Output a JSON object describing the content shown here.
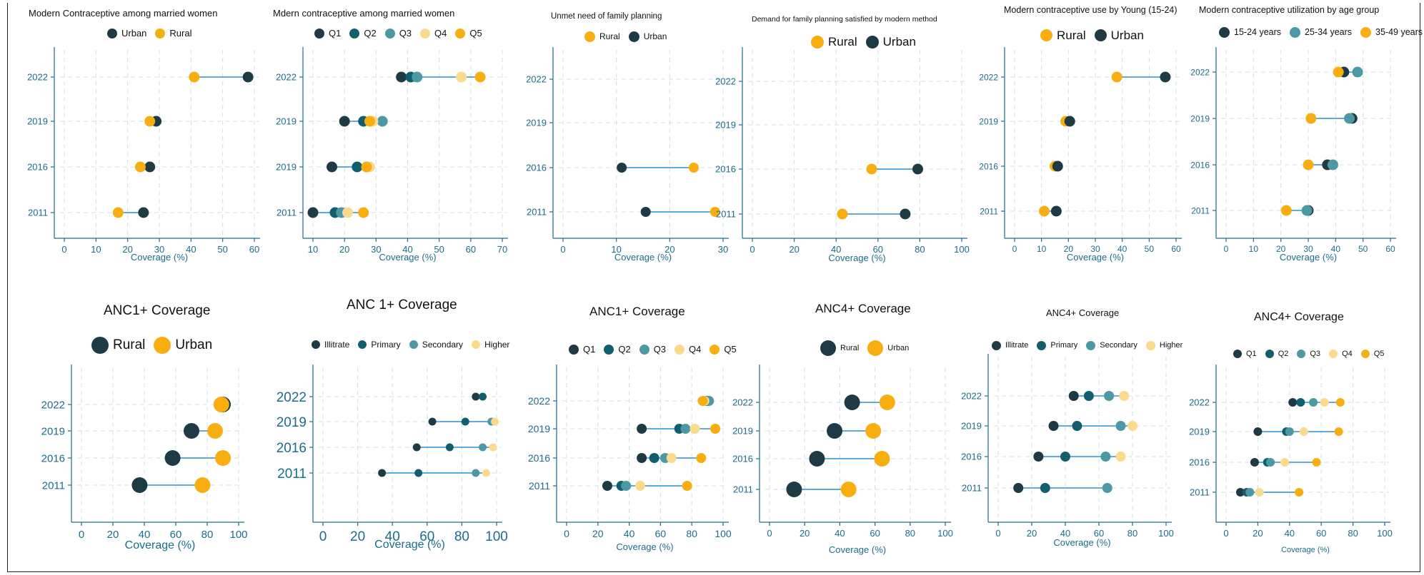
{
  "colors": {
    "dark": "#1d3a45",
    "teal_dark": "#135e6e",
    "teal": "#4d98a5",
    "yellow_light": "#fbd98d",
    "orange": "#f8ae10",
    "blue_line": "#2d8fd6",
    "axis": "#1b6d8a"
  },
  "chart_data": [
    {
      "id": "p1",
      "type": "dumbbell",
      "title": "Modern Contraceptive among married women",
      "xlabel": "Coverage (%)",
      "xlim": [
        0,
        60
      ],
      "xticks": [
        0,
        10,
        20,
        30,
        40,
        50,
        60
      ],
      "categories": [
        "2022",
        "2019",
        "2016",
        "2011"
      ],
      "series": [
        {
          "name": "Urban",
          "color": "#1d3a45",
          "values": [
            58,
            29,
            27,
            25
          ]
        },
        {
          "name": "Rural",
          "color": "#f8ae10",
          "values": [
            41,
            27,
            24,
            17
          ]
        }
      ]
    },
    {
      "id": "p2",
      "type": "dumbbell",
      "title": "Mdern contraceptive among married women",
      "xlabel": "Coverage (%)",
      "xlim": [
        10,
        70
      ],
      "xticks": [
        10,
        20,
        30,
        40,
        50,
        60,
        70
      ],
      "categories": [
        "2022",
        "2019",
        "2019",
        "2011"
      ],
      "series": [
        {
          "name": "Q1",
          "color": "#1d3a45",
          "values": [
            38,
            20,
            16,
            10
          ]
        },
        {
          "name": "Q2",
          "color": "#135e6e",
          "values": [
            41,
            26,
            24,
            17
          ]
        },
        {
          "name": "Q3",
          "color": "#4d98a5",
          "values": [
            43,
            32,
            27,
            19
          ]
        },
        {
          "name": "Q4",
          "color": "#fbd98d",
          "values": [
            57,
            29,
            28,
            21
          ]
        },
        {
          "name": "Q5",
          "color": "#f8ae10",
          "values": [
            63,
            28,
            27,
            26
          ]
        }
      ]
    },
    {
      "id": "p3",
      "type": "dumbbell",
      "title": "Unmet need of family planning",
      "xlabel": "Coverage (%)",
      "xlim": [
        0,
        30
      ],
      "xticks": [
        0,
        10,
        20,
        30
      ],
      "categories": [
        "2022",
        "2019",
        "2016",
        "2011"
      ],
      "series": [
        {
          "name": "Rural",
          "color": "#f8ae10",
          "values": [
            null,
            null,
            24.5,
            28.5
          ]
        },
        {
          "name": "Urban",
          "color": "#1d3a45",
          "values": [
            null,
            null,
            11,
            15.5
          ]
        }
      ]
    },
    {
      "id": "p4",
      "type": "dumbbell",
      "title": "Demand for family planning satisfied by modern method",
      "xlabel": "Coverage (%)",
      "xlim": [
        0,
        100
      ],
      "xticks": [
        0,
        20,
        40,
        60,
        80,
        100
      ],
      "categories": [
        "2022",
        "2019",
        "2016",
        "2011"
      ],
      "series": [
        {
          "name": "Rural",
          "color": "#f8ae10",
          "values": [
            null,
            null,
            57,
            43
          ]
        },
        {
          "name": "Urban",
          "color": "#1d3a45",
          "values": [
            null,
            null,
            79,
            73
          ]
        }
      ]
    },
    {
      "id": "p5",
      "type": "dumbbell",
      "title": "Modern contraceptive use by Young (15-24)",
      "xlabel": "Coverage (%)",
      "xlim": [
        0,
        60
      ],
      "xticks": [
        0,
        10,
        20,
        30,
        40,
        50,
        60
      ],
      "categories": [
        "2022",
        "2019",
        "2016",
        "2011"
      ],
      "series": [
        {
          "name": "Rural",
          "color": "#f8ae10",
          "values": [
            38,
            19,
            15,
            11
          ]
        },
        {
          "name": "Urban",
          "color": "#1d3a45",
          "values": [
            56,
            20.5,
            16,
            15.5
          ]
        }
      ]
    },
    {
      "id": "p6",
      "type": "dumbbell",
      "title": "Modern contraceptive utilization by age group",
      "xlabel": "Coverage (%)",
      "xlim": [
        0,
        60
      ],
      "xticks": [
        0,
        10,
        20,
        30,
        40,
        50,
        60
      ],
      "categories": [
        "2022",
        "2019",
        "2016",
        "2011"
      ],
      "series": [
        {
          "name": "15-24 years",
          "color": "#1d3a45",
          "values": [
            43,
            46,
            37,
            30
          ]
        },
        {
          "name": "25-34 years",
          "color": "#4d98a5",
          "values": [
            48,
            45,
            39,
            29.5
          ]
        },
        {
          "name": "35-49 years",
          "color": "#f8ae10",
          "values": [
            41,
            31,
            30,
            22
          ]
        }
      ]
    },
    {
      "id": "p7",
      "type": "dumbbell",
      "title": "ANC1+ Coverage",
      "xlabel": "Coverage (%)",
      "xlim": [
        0,
        100
      ],
      "xticks": [
        0,
        20,
        40,
        60,
        80,
        100
      ],
      "categories": [
        "2022",
        "2019",
        "2016",
        "2011"
      ],
      "series": [
        {
          "name": "Rural",
          "color": "#1d3a45",
          "values": [
            90,
            70,
            58,
            37
          ]
        },
        {
          "name": "Urban",
          "color": "#f8ae10",
          "values": [
            89,
            85,
            90,
            77
          ]
        }
      ]
    },
    {
      "id": "p8",
      "type": "dumbbell",
      "title": "ANC 1+ Coverage",
      "xlabel": "Coverage (%)",
      "xlim": [
        0,
        100
      ],
      "xticks": [
        0,
        20,
        40,
        60,
        80,
        100
      ],
      "categories": [
        "2022",
        "2019",
        "2016",
        "2011"
      ],
      "series": [
        {
          "name": "Illitrate",
          "color": "#1d3a45",
          "values": [
            88,
            63,
            54,
            34
          ]
        },
        {
          "name": "Primary",
          "color": "#135e6e",
          "values": [
            92,
            82,
            73,
            55
          ]
        },
        {
          "name": "Secondary",
          "color": "#4d98a5",
          "values": [
            null,
            97,
            92,
            88
          ]
        },
        {
          "name": "Higher",
          "color": "#fbd98d",
          "values": [
            null,
            99,
            98,
            94
          ]
        }
      ]
    },
    {
      "id": "p9",
      "type": "dumbbell",
      "title": "ANC1+ Coverage",
      "xlabel": "Coverage (%)",
      "xlim": [
        0,
        100
      ],
      "xticks": [
        0,
        20,
        40,
        60,
        80,
        100
      ],
      "categories": [
        "2022",
        "2019",
        "2016",
        "2011"
      ],
      "series": [
        {
          "name": "Q1",
          "color": "#1d3a45",
          "values": [
            89,
            48,
            48,
            26
          ]
        },
        {
          "name": "Q2",
          "color": "#135e6e",
          "values": [
            90,
            72,
            56,
            35
          ]
        },
        {
          "name": "Q3",
          "color": "#4d98a5",
          "values": [
            91,
            76,
            63,
            38
          ]
        },
        {
          "name": "Q4",
          "color": "#fbd98d",
          "values": [
            88,
            82,
            67,
            47
          ]
        },
        {
          "name": "Q5",
          "color": "#f8ae10",
          "values": [
            87,
            95,
            86,
            77
          ]
        }
      ]
    },
    {
      "id": "p10",
      "type": "dumbbell",
      "title": "ANC4+ Coverage",
      "xlabel": "Coverage (%)",
      "xlim": [
        0,
        100
      ],
      "xticks": [
        0,
        20,
        40,
        60,
        80,
        100
      ],
      "categories": [
        "2022",
        "2019",
        "2016",
        "2011"
      ],
      "series": [
        {
          "name": "Rural",
          "color": "#1d3a45",
          "values": [
            47,
            37,
            27,
            14
          ]
        },
        {
          "name": "Urban",
          "color": "#f8ae10",
          "values": [
            67,
            59,
            64,
            45
          ]
        }
      ]
    },
    {
      "id": "p11",
      "type": "dumbbell",
      "title": "ANC4+ Coverage",
      "xlabel": "Coverage (%)",
      "xlim": [
        0,
        100
      ],
      "xticks": [
        0,
        20,
        40,
        60,
        80,
        100
      ],
      "categories": [
        "2022",
        "2019",
        "2016",
        "2011"
      ],
      "series": [
        {
          "name": "Illitrate",
          "color": "#1d3a45",
          "values": [
            45,
            33,
            24,
            12
          ]
        },
        {
          "name": "Primary",
          "color": "#135e6e",
          "values": [
            54,
            47,
            40,
            28
          ]
        },
        {
          "name": "Secondary",
          "color": "#4d98a5",
          "values": [
            66,
            73,
            64,
            65
          ]
        },
        {
          "name": "Higher",
          "color": "#fbd98d",
          "values": [
            75,
            80,
            73,
            null
          ]
        }
      ]
    },
    {
      "id": "p12",
      "type": "dumbbell",
      "title": "ANC4+ Coverage",
      "xlabel": "Coverage (%)",
      "xlim": [
        0,
        100
      ],
      "xticks": [
        0,
        20,
        40,
        60,
        80,
        100
      ],
      "categories": [
        "2022",
        "2019",
        "2016",
        "2011"
      ],
      "series": [
        {
          "name": "Q1",
          "color": "#1d3a45",
          "values": [
            42,
            20,
            18,
            9
          ]
        },
        {
          "name": "Q2",
          "color": "#135e6e",
          "values": [
            47,
            38,
            26,
            13
          ]
        },
        {
          "name": "Q3",
          "color": "#4d98a5",
          "values": [
            55,
            40,
            28,
            15
          ]
        },
        {
          "name": "Q4",
          "color": "#fbd98d",
          "values": [
            62,
            49,
            37,
            21
          ]
        },
        {
          "name": "Q5",
          "color": "#f8ae10",
          "values": [
            72,
            71,
            57,
            46
          ]
        }
      ]
    }
  ]
}
